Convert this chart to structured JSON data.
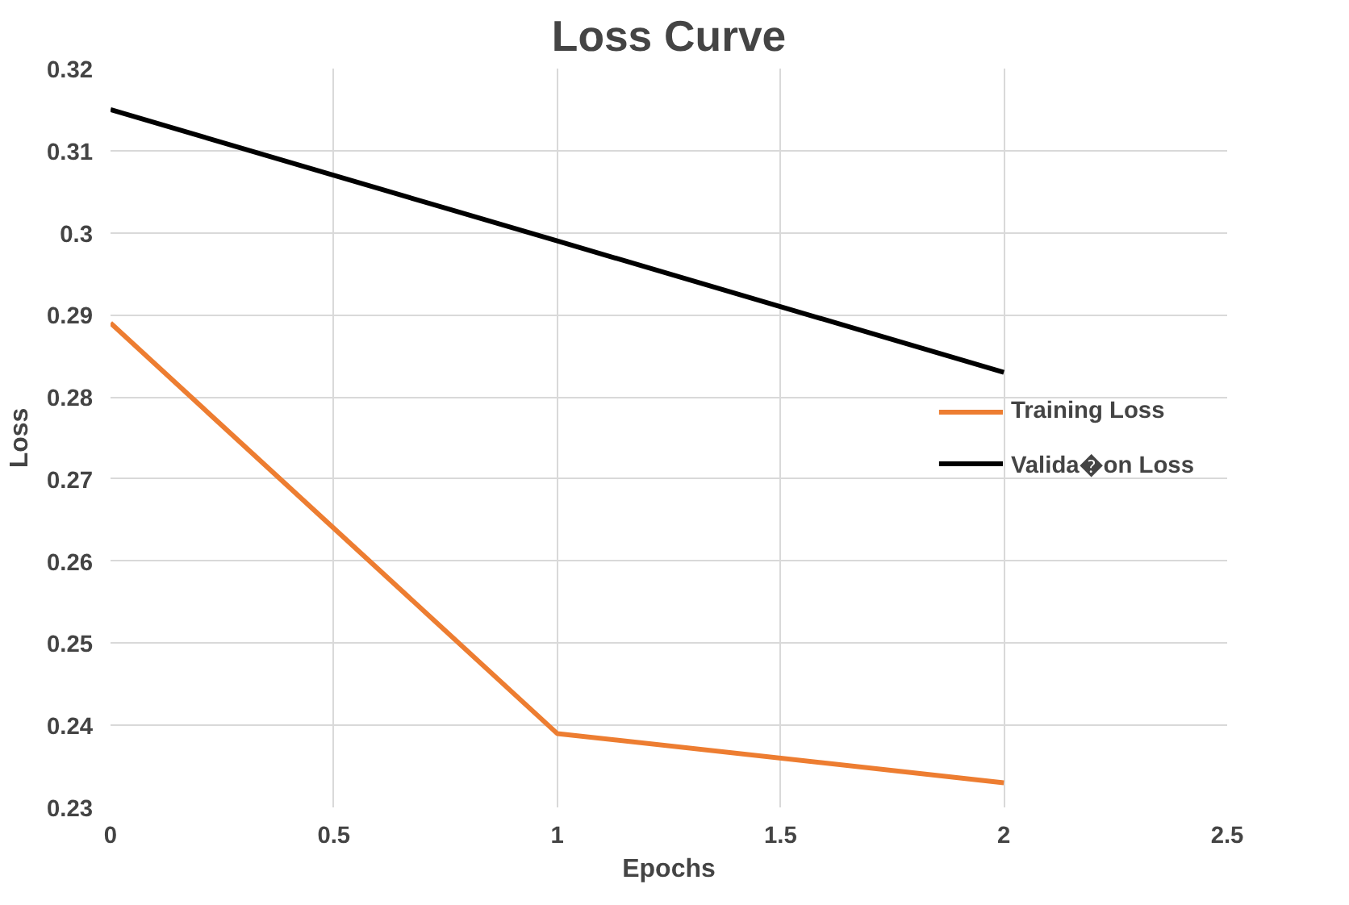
{
  "chart_data": {
    "type": "line",
    "title": "Loss Curve",
    "xlabel": "Epochs",
    "ylabel": "Loss",
    "x": [
      0,
      1,
      2
    ],
    "series": [
      {
        "name": "Training Loss",
        "color": "#ed7d31",
        "values": [
          0.289,
          0.239,
          0.233
        ]
      },
      {
        "name": "Valida�on Loss",
        "color": "#000000",
        "values": [
          0.315,
          0.299,
          0.283
        ]
      }
    ],
    "xlim": [
      0,
      2.5
    ],
    "xticks": [
      0,
      0.5,
      1,
      1.5,
      2,
      2.5
    ],
    "ylim": [
      0.23,
      0.32
    ],
    "yticks": [
      0.23,
      0.24,
      0.25,
      0.26,
      0.27,
      0.28,
      0.29,
      0.3,
      0.31,
      0.32
    ],
    "grid": true,
    "legend": "right",
    "marker": "none",
    "line_style": "solid"
  }
}
